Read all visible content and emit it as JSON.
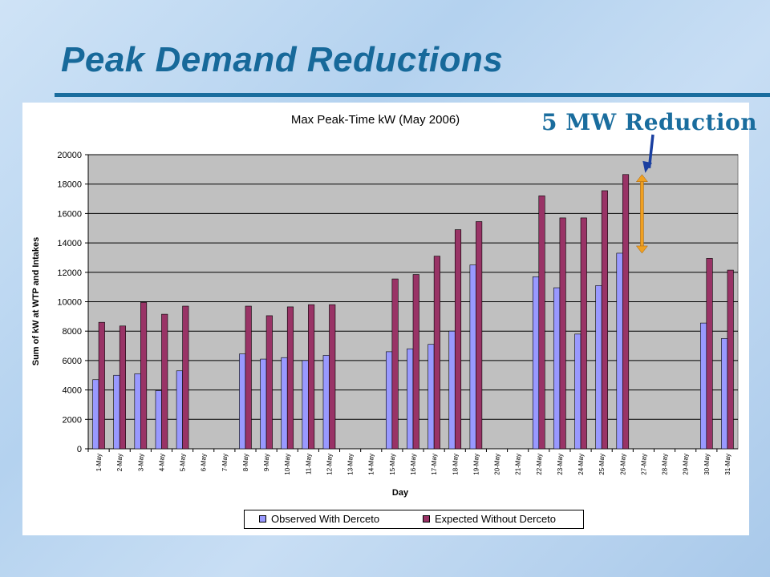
{
  "slide": {
    "title": "Peak Demand Reductions",
    "callout": "5 MW Reduction"
  },
  "colors": {
    "title": "#17699a",
    "accent_rule": "#1a6d9e",
    "plot_background": "#c0c0c0",
    "observed_bar": "#9999ff",
    "expected_bar": "#993366",
    "reduction_arrow": "#f0a020",
    "callout_arrow": "#1a3fa0"
  },
  "chart_data": {
    "type": "bar",
    "title": "Max Peak-Time kW (May 2006)",
    "xlabel": "Day",
    "ylabel": "Sum of kW at WTP and Intakes",
    "ylim": [
      0,
      20000
    ],
    "yticks": [
      0,
      2000,
      4000,
      6000,
      8000,
      10000,
      12000,
      14000,
      16000,
      18000,
      20000
    ],
    "grid": "horizontal major gridlines",
    "legend_position": "bottom",
    "categories": [
      "1-May",
      "2-May",
      "3-May",
      "4-May",
      "5-May",
      "6-May",
      "7-May",
      "8-May",
      "9-May",
      "10-May",
      "11-May",
      "12-May",
      "13-May",
      "14-May",
      "15-May",
      "16-May",
      "17-May",
      "18-May",
      "19-May",
      "20-May",
      "21-May",
      "22-May",
      "23-May",
      "24-May",
      "25-May",
      "26-May",
      "27-May",
      "28-May",
      "29-May",
      "30-May",
      "31-May"
    ],
    "series": [
      {
        "name": "Observed With Derceto",
        "values": [
          4700,
          5000,
          5100,
          3950,
          5300,
          null,
          null,
          6450,
          6100,
          6200,
          6000,
          6350,
          null,
          null,
          6600,
          6800,
          7100,
          8000,
          12500,
          null,
          null,
          11700,
          10950,
          7800,
          11100,
          13300,
          null,
          null,
          null,
          8550,
          7500
        ]
      },
      {
        "name": "Expected Without Derceto",
        "values": [
          8600,
          8350,
          9950,
          9150,
          9700,
          null,
          null,
          9700,
          9050,
          9650,
          9800,
          9800,
          null,
          null,
          11550,
          11850,
          13100,
          14900,
          15450,
          null,
          null,
          17200,
          15700,
          15700,
          17550,
          18650,
          null,
          null,
          null,
          12950,
          12150
        ]
      }
    ],
    "annotation": "5 MW Reduction"
  }
}
